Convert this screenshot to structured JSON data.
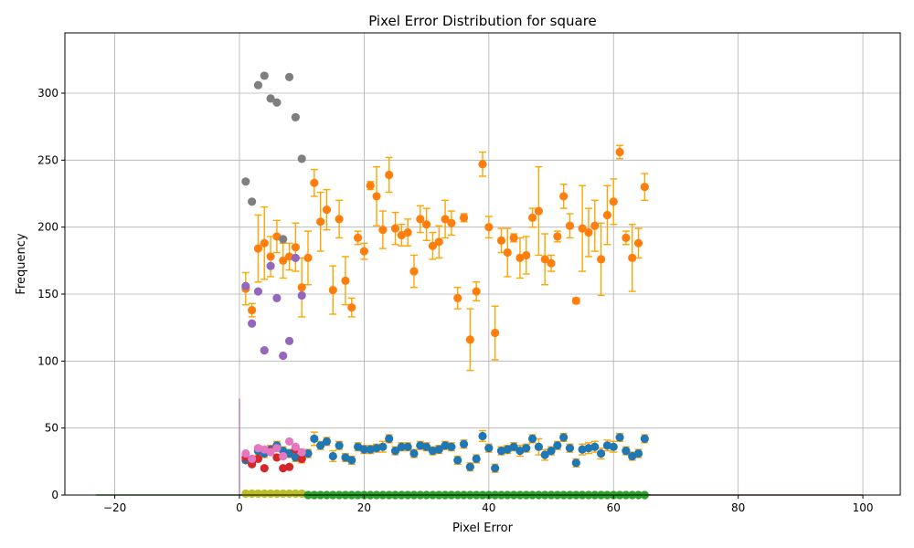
{
  "chart_data": {
    "type": "scatter",
    "title": "Pixel Error Distribution for square",
    "xlabel": "Pixel Error",
    "ylabel": "Frequency",
    "xlim": [
      -28,
      106
    ],
    "ylim": [
      0,
      345
    ],
    "xticks": [
      -20,
      0,
      20,
      40,
      60,
      80,
      100
    ],
    "yticks": [
      0,
      50,
      100,
      150,
      200,
      250,
      300
    ],
    "grid": true,
    "errorbar_color": "#ffa500",
    "spike": {
      "x": 0,
      "y": 72,
      "color": "#9467bd"
    },
    "series": [
      {
        "color": "#ff7f0e",
        "x": [
          1,
          2,
          3,
          4,
          5,
          6,
          7,
          8,
          9,
          10,
          11,
          12,
          13,
          14,
          15,
          16,
          17,
          18,
          19,
          20,
          21,
          22,
          23,
          24,
          25,
          26,
          27,
          28,
          29,
          30,
          31,
          32,
          33,
          34,
          35,
          36,
          37,
          38,
          39,
          40,
          41,
          42,
          43,
          44,
          45,
          46,
          47,
          48,
          49,
          50,
          51,
          52,
          53,
          54,
          55,
          56,
          57,
          58,
          59,
          60,
          61,
          62,
          63,
          64,
          65
        ],
        "y": [
          154,
          138,
          184,
          188,
          178,
          193,
          175,
          178,
          185,
          155,
          177,
          233,
          204,
          213,
          153,
          206,
          160,
          140,
          192,
          182,
          231,
          223,
          198,
          239,
          199,
          194,
          196,
          167,
          206,
          202,
          186,
          189,
          206,
          203,
          147,
          207,
          116,
          152,
          247,
          200,
          121,
          190,
          181,
          192,
          177,
          179,
          207,
          212,
          176,
          173,
          193,
          223,
          201,
          145,
          199,
          196,
          201,
          176,
          209,
          219,
          256,
          192,
          177,
          188,
          230
        ],
        "yerr": [
          12,
          5,
          25,
          27,
          15,
          12,
          13,
          10,
          18,
          22,
          20,
          10,
          22,
          15,
          18,
          14,
          18,
          7,
          5,
          6,
          3,
          22,
          14,
          13,
          12,
          8,
          10,
          12,
          10,
          12,
          10,
          12,
          14,
          9,
          8,
          3,
          23,
          7,
          9,
          8,
          20,
          9,
          18,
          3,
          15,
          14,
          7,
          33,
          19,
          6,
          4,
          9,
          9,
          2,
          32,
          18,
          19,
          27,
          22,
          17,
          5,
          5,
          25,
          11,
          10
        ]
      },
      {
        "color": "#7f7f7f",
        "x": [
          1,
          2,
          3,
          4,
          5,
          6,
          7,
          8,
          9,
          10
        ],
        "y": [
          234,
          219,
          306,
          313,
          296,
          293,
          191,
          312,
          282,
          251
        ]
      },
      {
        "color": "#9467bd",
        "x": [
          1,
          2,
          3,
          4,
          5,
          6,
          7,
          8,
          9,
          10
        ],
        "y": [
          156,
          128,
          152,
          108,
          171,
          147,
          104,
          115,
          177,
          149
        ]
      },
      {
        "color": "#1f77b4",
        "x": [
          1,
          2,
          3,
          4,
          5,
          6,
          7,
          8,
          9,
          10,
          11,
          12,
          13,
          14,
          15,
          16,
          17,
          18,
          19,
          20,
          21,
          22,
          23,
          24,
          25,
          26,
          27,
          28,
          29,
          30,
          31,
          32,
          33,
          34,
          35,
          36,
          37,
          38,
          39,
          40,
          41,
          42,
          43,
          44,
          45,
          46,
          47,
          48,
          49,
          50,
          51,
          52,
          53,
          54,
          55,
          56,
          57,
          58,
          59,
          60,
          61,
          62,
          63,
          64,
          65
        ],
        "y": [
          26,
          24,
          33,
          31,
          34,
          37,
          33,
          31,
          28,
          27,
          31,
          42,
          37,
          40,
          29,
          37,
          28,
          26,
          36,
          34,
          34,
          35,
          36,
          42,
          33,
          36,
          36,
          31,
          37,
          36,
          33,
          34,
          37,
          36,
          26,
          38,
          21,
          27,
          44,
          35,
          20,
          33,
          34,
          36,
          33,
          35,
          42,
          36,
          30,
          33,
          37,
          43,
          35,
          24,
          34,
          35,
          36,
          31,
          37,
          36,
          43,
          33,
          29,
          31,
          42
        ],
        "yerr": [
          2,
          2,
          3,
          3,
          3,
          3,
          3,
          3,
          3,
          3,
          3,
          5,
          3,
          3,
          4,
          3,
          3,
          3,
          3,
          3,
          3,
          3,
          4,
          3,
          3,
          3,
          3,
          3,
          3,
          3,
          3,
          3,
          3,
          3,
          3,
          3,
          3,
          3,
          4,
          3,
          3,
          3,
          3,
          3,
          4,
          3,
          3,
          6,
          4,
          3,
          3,
          3,
          3,
          3,
          4,
          4,
          4,
          4,
          4,
          4,
          3,
          3,
          3,
          3,
          3
        ]
      },
      {
        "color": "#d62728",
        "x": [
          1,
          2,
          3,
          4,
          5,
          6,
          7,
          8,
          9,
          10
        ],
        "y": [
          28,
          23,
          27,
          20,
          33,
          28,
          20,
          21,
          34,
          27
        ]
      },
      {
        "color": "#e377c2",
        "x": [
          1,
          2,
          3,
          4,
          5,
          6,
          7,
          8,
          9,
          10
        ],
        "y": [
          31,
          27,
          35,
          34,
          32,
          35,
          29,
          40,
          36,
          32
        ]
      },
      {
        "color": "#bcbd22",
        "x": [
          1,
          2,
          3,
          4,
          5,
          6,
          7,
          8,
          9,
          10
        ],
        "y": [
          1,
          1,
          1,
          1,
          1,
          1,
          1,
          1,
          1,
          1
        ]
      },
      {
        "color": "#2ca02c",
        "x": [
          11,
          12,
          13,
          14,
          15,
          16,
          17,
          18,
          19,
          20,
          21,
          22,
          23,
          24,
          25,
          26,
          27,
          28,
          29,
          30,
          31,
          32,
          33,
          34,
          35,
          36,
          37,
          38,
          39,
          40,
          41,
          42,
          43,
          44,
          45,
          46,
          47,
          48,
          49,
          50,
          51,
          52,
          53,
          54,
          55,
          56,
          57,
          58,
          59,
          60,
          61,
          62,
          63,
          64,
          65
        ],
        "y": [
          0,
          0,
          0,
          0,
          0,
          0,
          0,
          0,
          0,
          0,
          0,
          0,
          0,
          0,
          0,
          0,
          0,
          0,
          0,
          0,
          0,
          0,
          0,
          0,
          0,
          0,
          0,
          0,
          0,
          0,
          0,
          0,
          0,
          0,
          0,
          0,
          0,
          0,
          0,
          0,
          0,
          0,
          0,
          0,
          0,
          0,
          0,
          0,
          0,
          0,
          0,
          0,
          0,
          0,
          0
        ]
      }
    ],
    "baseline_lines": [
      {
        "color": "#2ca02c",
        "x": [
          -23,
          66
        ],
        "y": [
          0,
          0
        ]
      },
      {
        "color": "#8c564b",
        "x": [
          0,
          100
        ],
        "y": [
          0,
          0
        ]
      }
    ]
  }
}
